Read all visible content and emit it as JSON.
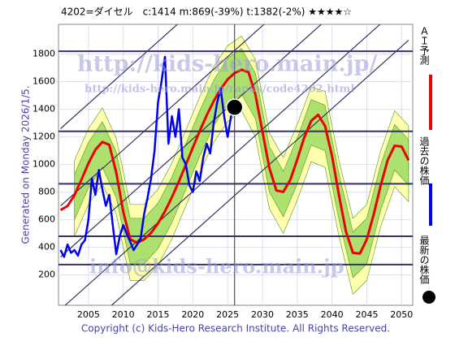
{
  "chart_data": {
    "type": "line",
    "title": "4202=ダイセル　c:1414  m:869(-39%)  t:1382(-2%)  ★★★★☆",
    "generated_note": "Generated on Monday 2026/1/5.",
    "copyright": "Copyright (c) Kids-Hero Research Institute. All Rights Reserved.",
    "watermarks": [
      "http://kids-hero.main.jp/",
      "http://kids-hero.main.jp/ranks/code4202.html",
      "info@kids-hero.main.jp"
    ],
    "xlim": [
      2000.7,
      2051.6
    ],
    "ylim": [
      -20,
      2015
    ],
    "xticks": [
      2005,
      2010,
      2015,
      2020,
      2025,
      2030,
      2035,
      2040,
      2045,
      2050
    ],
    "yticks": [
      200,
      400,
      600,
      800,
      1000,
      1200,
      1400,
      1600,
      1800
    ],
    "grid": true,
    "series": [
      {
        "name": "ＡＩ予測",
        "color": "#ee0000",
        "x": [
          2001,
          2002,
          2003,
          2004,
          2005,
          2006,
          2007,
          2008,
          2009,
          2010,
          2011,
          2012,
          2013,
          2014,
          2015,
          2016,
          2017,
          2018,
          2019,
          2020,
          2021,
          2022,
          2023,
          2024,
          2025,
          2026,
          2027,
          2028,
          2029,
          2030,
          2031,
          2032,
          2033,
          2034,
          2035,
          2036,
          2037,
          2038,
          2039,
          2040,
          2041,
          2042,
          2043,
          2044,
          2045,
          2046,
          2047,
          2048,
          2049,
          2050,
          2051
        ],
        "values": [
          670,
          699,
          778,
          890,
          1008,
          1107,
          1163,
          1142,
          941,
          659,
          458,
          433,
          458,
          504,
          574,
          661,
          763,
          877,
          998,
          1122,
          1243,
          1357,
          1459,
          1546,
          1616,
          1662,
          1687,
          1668,
          1505,
          1240,
          975,
          812,
          801,
          888,
          1035,
          1194,
          1315,
          1360,
          1279,
          1062,
          778,
          516,
          360,
          354,
          458,
          640,
          849,
          1032,
          1136,
          1130,
          1030
        ]
      },
      {
        "name": "過去の株価",
        "color": "#0000ee",
        "x": [
          2001,
          2001.5,
          2002,
          2002.5,
          2003,
          2003.5,
          2004,
          2004.5,
          2005,
          2005.5,
          2006,
          2006.5,
          2007,
          2007.5,
          2008,
          2008.5,
          2009,
          2009.5,
          2010,
          2010.5,
          2011,
          2011.5,
          2012,
          2012.5,
          2013,
          2013.5,
          2014,
          2014.5,
          2015,
          2015.5,
          2016,
          2016.5,
          2017,
          2017.5,
          2018,
          2018.5,
          2019,
          2019.5,
          2020,
          2020.5,
          2021,
          2021.5,
          2022,
          2022.5,
          2023,
          2023.5,
          2024,
          2024.5,
          2025,
          2025.5,
          2026
        ],
        "values": [
          380,
          330,
          420,
          360,
          380,
          340,
          420,
          450,
          600,
          900,
          780,
          960,
          820,
          700,
          780,
          560,
          350,
          480,
          560,
          500,
          440,
          380,
          420,
          460,
          640,
          760,
          900,
          1100,
          1450,
          1600,
          1780,
          1150,
          1350,
          1200,
          1400,
          1050,
          1000,
          850,
          800,
          950,
          880,
          1050,
          1150,
          1080,
          1300,
          1450,
          1550,
          1350,
          1200,
          1350,
          1414
        ]
      }
    ],
    "latest": {
      "name": "最新の株価",
      "x": 2026,
      "value": 1414
    },
    "bands": {
      "x": [
        2003,
        2005,
        2007,
        2009,
        2011,
        2013,
        2015,
        2017,
        2019,
        2021,
        2023,
        2025,
        2027,
        2029,
        2031,
        2033,
        2035,
        2037,
        2039,
        2041,
        2043,
        2045,
        2047,
        2049,
        2051
      ],
      "outer_upper": [
        1030,
        1260,
        1410,
        1190,
        710,
        710,
        820,
        1010,
        1250,
        1490,
        1710,
        1860,
        1930,
        1760,
        1230,
        1050,
        1290,
        1560,
        1530,
        1030,
        610,
        710,
        1100,
        1390,
        1280
      ],
      "outer_lower": [
        480,
        710,
        860,
        640,
        160,
        160,
        270,
        460,
        700,
        940,
        1160,
        1310,
        1390,
        1200,
        680,
        500,
        740,
        1020,
        980,
        480,
        60,
        160,
        550,
        840,
        730
      ],
      "inner_upper": [
        930,
        1160,
        1310,
        1090,
        610,
        610,
        720,
        910,
        1150,
        1390,
        1610,
        1770,
        1840,
        1660,
        1130,
        950,
        1190,
        1470,
        1430,
        930,
        510,
        610,
        1000,
        1290,
        1180
      ],
      "inner_lower": [
        600,
        830,
        980,
        760,
        280,
        280,
        390,
        580,
        820,
        1060,
        1280,
        1440,
        1510,
        1330,
        800,
        620,
        860,
        1140,
        1100,
        600,
        180,
        280,
        670,
        960,
        850
      ],
      "outer_color": "#ffff99",
      "inner_color": "#77cc44"
    },
    "reference_lines": [
      1820,
      1240,
      860,
      480,
      275
    ],
    "reference_color": "#333366",
    "trend_lines": [
      {
        "x": [
          2001,
          2051
        ],
        "values": [
          1260,
          3510
        ]
      },
      {
        "x": [
          2001,
          2051
        ],
        "values": [
          700,
          2950
        ]
      },
      {
        "x": [
          2001,
          2051
        ],
        "values": [
          330,
          2580
        ]
      },
      {
        "x": [
          2001,
          2051
        ],
        "values": [
          -50,
          2200
        ]
      },
      {
        "x": [
          2001,
          2051
        ],
        "values": [
          -350,
          1900
        ]
      }
    ]
  }
}
